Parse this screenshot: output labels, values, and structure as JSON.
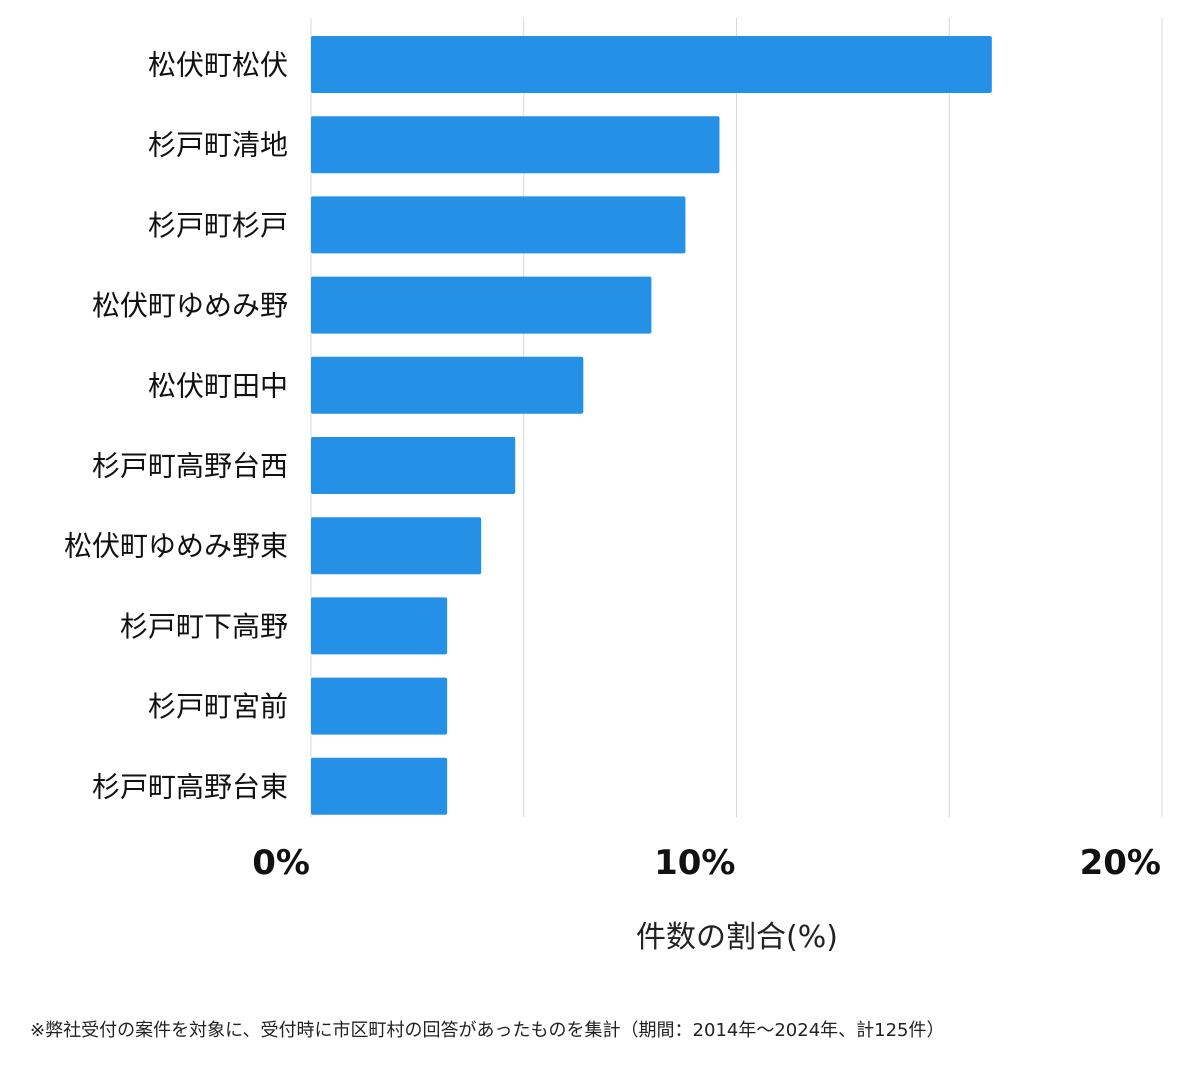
{
  "chart_data": {
    "type": "bar",
    "orientation": "horizontal",
    "categories": [
      "松伏町松伏",
      "杉戸町清地",
      "杉戸町杉戸",
      "松伏町ゆめみ野",
      "松伏町田中",
      "杉戸町高野台西",
      "松伏町ゆめみ野東",
      "杉戸町下高野",
      "杉戸町宮前",
      "杉戸町高野台東"
    ],
    "values": [
      16.0,
      9.6,
      8.8,
      8.0,
      6.4,
      4.8,
      4.0,
      3.2,
      3.2,
      3.2
    ],
    "xlabel": "件数の割合(%)",
    "ylabel": "",
    "xlim": [
      0,
      20
    ],
    "xticks": [
      0,
      10,
      20
    ],
    "xtick_labels": [
      "0%",
      "10%",
      "20%"
    ],
    "gridlines": [
      0,
      5,
      10,
      15,
      20
    ],
    "grid": true,
    "bar_color": "#2490e6"
  },
  "footer": "※弊社受付の案件を対象に、受付時に市区町村の回答があったものを集計（期間：2014年～2024年、計125件）"
}
